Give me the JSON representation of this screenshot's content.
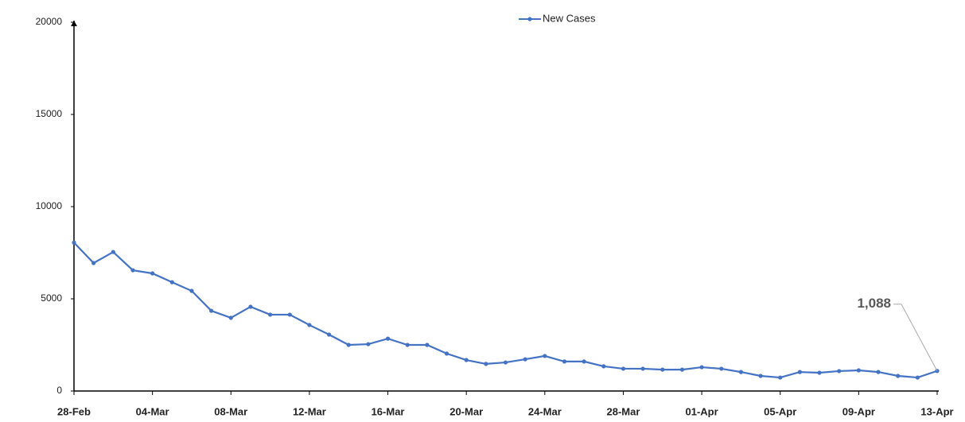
{
  "chart_data": {
    "type": "line",
    "categories": [
      "28-Feb",
      null,
      null,
      null,
      "04-Mar",
      null,
      null,
      null,
      "08-Mar",
      null,
      null,
      null,
      "12-Mar",
      null,
      null,
      null,
      "16-Mar",
      null,
      null,
      null,
      "20-Mar",
      null,
      null,
      null,
      "24-Mar",
      null,
      null,
      null,
      "28-Mar",
      null,
      null,
      null,
      "01-Apr",
      null,
      null,
      null,
      "05-Apr",
      null,
      null,
      null,
      "09-Apr",
      null,
      null,
      null,
      "13-Apr"
    ],
    "series": [
      {
        "name": "New Cases",
        "color": "#4472c4",
        "values": [
          8050,
          6940,
          7540,
          6550,
          6380,
          5900,
          5430,
          4350,
          3970,
          4570,
          4140,
          4140,
          3580,
          3060,
          2500,
          2540,
          2840,
          2500,
          2500,
          2030,
          1680,
          1470,
          1550,
          1720,
          1900,
          1600,
          1600,
          1340,
          1210,
          1210,
          1160,
          1160,
          1290,
          1210,
          1030,
          820,
          730,
          1030,
          990,
          1080,
          1120,
          1030,
          820,
          730,
          1088
        ],
        "value_labels": [
          null,
          null,
          null,
          null,
          null,
          null,
          null,
          null,
          null,
          null,
          null,
          null,
          null,
          null,
          null,
          null,
          null,
          null,
          null,
          null,
          null,
          null,
          null,
          null,
          null,
          null,
          null,
          null,
          null,
          null,
          null,
          null,
          null,
          null,
          null,
          null,
          null,
          null,
          null,
          null,
          null,
          null,
          null,
          null,
          "1,088"
        ]
      }
    ],
    "ylim": [
      0,
      20000
    ],
    "yticks": [
      0,
      5000,
      10000,
      15000,
      20000
    ],
    "grid": false,
    "legend": "top"
  }
}
